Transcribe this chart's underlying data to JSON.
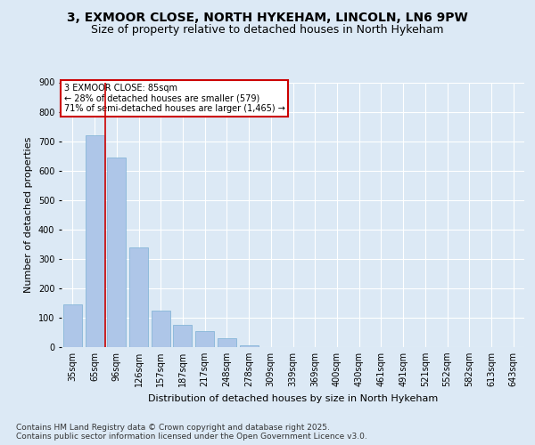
{
  "title1": "3, EXMOOR CLOSE, NORTH HYKEHAM, LINCOLN, LN6 9PW",
  "title2": "Size of property relative to detached houses in North Hykeham",
  "xlabel": "Distribution of detached houses by size in North Hykeham",
  "ylabel": "Number of detached properties",
  "categories": [
    "35sqm",
    "65sqm",
    "96sqm",
    "126sqm",
    "157sqm",
    "187sqm",
    "217sqm",
    "248sqm",
    "278sqm",
    "309sqm",
    "339sqm",
    "369sqm",
    "400sqm",
    "430sqm",
    "461sqm",
    "491sqm",
    "521sqm",
    "552sqm",
    "582sqm",
    "613sqm",
    "643sqm"
  ],
  "values": [
    145,
    720,
    645,
    340,
    125,
    75,
    55,
    30,
    5,
    0,
    0,
    0,
    0,
    0,
    0,
    0,
    0,
    0,
    0,
    0,
    0
  ],
  "bar_color": "#aec6e8",
  "bar_edge_color": "#7aafd4",
  "vline_color": "#cc0000",
  "annotation_text": "3 EXMOOR CLOSE: 85sqm\n← 28% of detached houses are smaller (579)\n71% of semi-detached houses are larger (1,465) →",
  "annotation_box_color": "#ffffff",
  "annotation_box_edge": "#cc0000",
  "bg_color": "#dce9f5",
  "grid_color": "#ffffff",
  "footnote": "Contains HM Land Registry data © Crown copyright and database right 2025.\nContains public sector information licensed under the Open Government Licence v3.0.",
  "title1_fontsize": 10,
  "title2_fontsize": 9,
  "ylabel_fontsize": 8,
  "xlabel_fontsize": 8,
  "tick_fontsize": 7,
  "annot_fontsize": 7,
  "footnote_fontsize": 6.5,
  "ylim": [
    0,
    900
  ],
  "vline_pos": 1.5
}
